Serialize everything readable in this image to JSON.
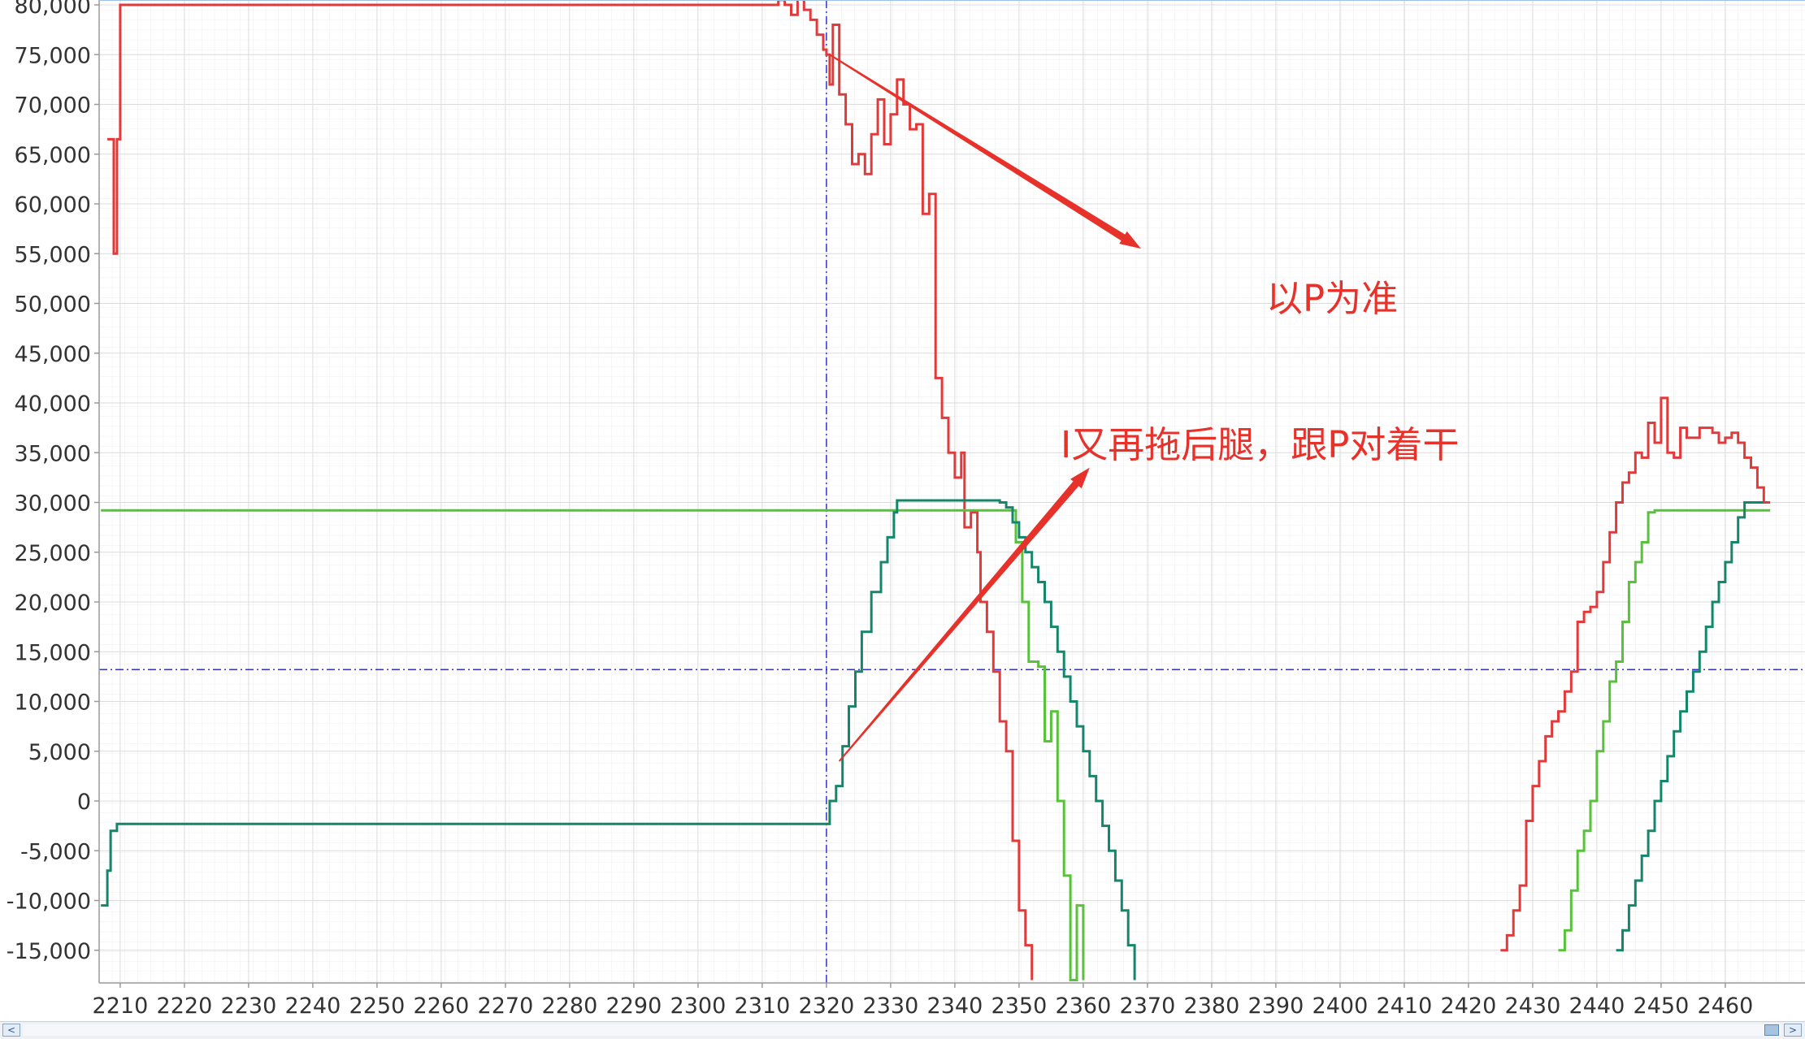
{
  "chart_data": {
    "type": "line",
    "title": "",
    "xlabel": "",
    "ylabel": "",
    "xlim": [
      2207,
      2466
    ],
    "ylim": [
      -18000,
      81500
    ],
    "x_ticks": [
      2210,
      2220,
      2230,
      2240,
      2250,
      2260,
      2270,
      2280,
      2290,
      2300,
      2310,
      2320,
      2330,
      2340,
      2350,
      2360,
      2370,
      2380,
      2390,
      2400,
      2410,
      2420,
      2430,
      2440,
      2450,
      2460
    ],
    "x_tick_labels": [
      "2210",
      "2220",
      "2230",
      "2240",
      "2250",
      "2260",
      "2270",
      "2280",
      "2290",
      "2300",
      "2310",
      "2320",
      "2330",
      "2340",
      "2350",
      "2360",
      "2370",
      "2380",
      "2390",
      "2400",
      "2410",
      "2420",
      "2430",
      "2440",
      "2450",
      "2460"
    ],
    "y_ticks": [
      80000,
      75000,
      70000,
      65000,
      60000,
      55000,
      50000,
      45000,
      40000,
      35000,
      30000,
      25000,
      20000,
      15000,
      10000,
      5000,
      0,
      -5000,
      -10000,
      -15000
    ],
    "y_tick_labels": [
      "80,000",
      "75,000",
      "70,000",
      "65,000",
      "60,000",
      "55,000",
      "50,000",
      "45,000",
      "40,000",
      "35,000",
      "30,000",
      "25,000",
      "20,000",
      "15,000",
      "10,000",
      "5,000",
      "0",
      "-5,000",
      "-10,000",
      "-15,000"
    ],
    "grid": true,
    "crosshair": {
      "x": 2320,
      "y": 13200,
      "color": "#3333cc"
    },
    "series": [
      {
        "color": "#e23a3a",
        "step": true,
        "points": [
          [
            2208,
            66500
          ],
          [
            2209,
            55000
          ],
          [
            2209.5,
            66500
          ],
          [
            2210,
            80000
          ],
          [
            2310.5,
            80000
          ],
          [
            2312.5,
            80500
          ],
          [
            2313.5,
            80000
          ],
          [
            2314.5,
            79000
          ],
          [
            2315.5,
            81500
          ],
          [
            2316.5,
            79500
          ],
          [
            2317.5,
            78500
          ],
          [
            2318.5,
            77000
          ],
          [
            2319.5,
            75500
          ],
          [
            2320,
            75000
          ],
          [
            2320.5,
            72000
          ],
          [
            2321,
            78000
          ],
          [
            2322,
            71000
          ],
          [
            2323,
            68000
          ],
          [
            2324,
            64000
          ],
          [
            2325,
            65000
          ],
          [
            2326,
            63000
          ],
          [
            2327,
            67000
          ],
          [
            2328,
            70500
          ],
          [
            2329,
            66000
          ],
          [
            2330,
            69000
          ],
          [
            2331,
            72500
          ],
          [
            2332,
            70000
          ],
          [
            2333,
            67500
          ],
          [
            2334,
            68000
          ],
          [
            2335,
            59000
          ],
          [
            2336,
            61000
          ],
          [
            2337,
            42500
          ],
          [
            2338,
            38500
          ],
          [
            2339,
            35000
          ],
          [
            2340,
            32500
          ],
          [
            2341,
            35000
          ],
          [
            2341.5,
            27500
          ],
          [
            2342.5,
            29000
          ],
          [
            2343.5,
            25000
          ],
          [
            2344,
            20000
          ],
          [
            2345,
            17000
          ],
          [
            2346,
            13000
          ],
          [
            2347,
            8000
          ],
          [
            2348,
            5000
          ],
          [
            2349,
            -4000
          ],
          [
            2350,
            -11000
          ],
          [
            2351,
            -14500
          ],
          [
            2352,
            -18000
          ]
        ]
      },
      {
        "color": "#e23a3a",
        "step": true,
        "points": [
          [
            2425,
            -15000
          ],
          [
            2426,
            -13500
          ],
          [
            2427,
            -11000
          ],
          [
            2428,
            -8500
          ],
          [
            2429,
            -2000
          ],
          [
            2430,
            1500
          ],
          [
            2431,
            4000
          ],
          [
            2432,
            6500
          ],
          [
            2433,
            8000
          ],
          [
            2434,
            9000
          ],
          [
            2435,
            11000
          ],
          [
            2436,
            13000
          ],
          [
            2437,
            18000
          ],
          [
            2438,
            19000
          ],
          [
            2439,
            19500
          ],
          [
            2440,
            21000
          ],
          [
            2441,
            24000
          ],
          [
            2442,
            27000
          ],
          [
            2443,
            30000
          ],
          [
            2444,
            32000
          ],
          [
            2445,
            33000
          ],
          [
            2446,
            35000
          ],
          [
            2447,
            34500
          ],
          [
            2448,
            38000
          ],
          [
            2449,
            36000
          ],
          [
            2450,
            40500
          ],
          [
            2451,
            35000
          ],
          [
            2452,
            34500
          ],
          [
            2453,
            37500
          ],
          [
            2454,
            36500
          ],
          [
            2455,
            36500
          ],
          [
            2456,
            37500
          ],
          [
            2457,
            37500
          ],
          [
            2458,
            37000
          ],
          [
            2459,
            36000
          ],
          [
            2460,
            36500
          ],
          [
            2461,
            37000
          ],
          [
            2462,
            36000
          ],
          [
            2463,
            34500
          ],
          [
            2464,
            33500
          ],
          [
            2465,
            31500
          ],
          [
            2466,
            30000
          ],
          [
            2467,
            30000
          ]
        ]
      },
      {
        "color": "#57c23a",
        "step": true,
        "points": [
          [
            2207,
            29200
          ],
          [
            2348.5,
            29200
          ],
          [
            2349.5,
            26000
          ],
          [
            2350.5,
            20000
          ],
          [
            2351.5,
            14000
          ],
          [
            2353,
            13500
          ],
          [
            2354,
            6000
          ],
          [
            2355,
            9000
          ],
          [
            2356,
            0
          ],
          [
            2357,
            -7500
          ],
          [
            2358,
            -18000
          ],
          [
            2359,
            -10500
          ],
          [
            2360,
            -18000
          ]
        ]
      },
      {
        "color": "#57c23a",
        "step": true,
        "points": [
          [
            2434,
            -15000
          ],
          [
            2435,
            -13000
          ],
          [
            2436,
            -9000
          ],
          [
            2437,
            -5000
          ],
          [
            2438,
            -3000
          ],
          [
            2439,
            0
          ],
          [
            2440,
            5000
          ],
          [
            2441,
            8000
          ],
          [
            2442,
            12000
          ],
          [
            2443,
            14000
          ],
          [
            2444,
            18000
          ],
          [
            2445,
            22000
          ],
          [
            2446,
            24000
          ],
          [
            2447,
            26000
          ],
          [
            2448,
            29000
          ],
          [
            2449,
            29200
          ],
          [
            2467,
            29200
          ]
        ]
      },
      {
        "color": "#14866b",
        "step": true,
        "points": [
          [
            2207,
            -10500
          ],
          [
            2208,
            -7000
          ],
          [
            2208.5,
            -3000
          ],
          [
            2209.5,
            -2300
          ],
          [
            2320,
            -2300
          ],
          [
            2320.5,
            0
          ],
          [
            2321.5,
            1500
          ],
          [
            2322.5,
            5500
          ],
          [
            2323.5,
            9500
          ],
          [
            2324.5,
            13000
          ],
          [
            2325.5,
            17000
          ],
          [
            2327,
            21000
          ],
          [
            2328.5,
            24000
          ],
          [
            2329.5,
            26500
          ],
          [
            2330.5,
            29000
          ],
          [
            2331,
            30200
          ],
          [
            2346,
            30200
          ],
          [
            2347,
            30000
          ],
          [
            2348,
            29500
          ],
          [
            2349,
            28000
          ],
          [
            2350,
            26500
          ],
          [
            2351,
            25000
          ],
          [
            2352,
            23500
          ],
          [
            2353,
            22000
          ],
          [
            2354,
            20000
          ],
          [
            2355,
            17500
          ],
          [
            2356,
            15000
          ],
          [
            2357,
            12500
          ],
          [
            2358,
            10000
          ],
          [
            2359,
            7500
          ],
          [
            2360,
            5000
          ],
          [
            2361,
            2500
          ],
          [
            2362,
            0
          ],
          [
            2363,
            -2500
          ],
          [
            2364,
            -5000
          ],
          [
            2365,
            -8000
          ],
          [
            2366,
            -11000
          ],
          [
            2367,
            -14500
          ],
          [
            2368,
            -18000
          ]
        ]
      },
      {
        "color": "#14866b",
        "step": true,
        "points": [
          [
            2443,
            -15000
          ],
          [
            2444,
            -13000
          ],
          [
            2445,
            -10500
          ],
          [
            2446,
            -8000
          ],
          [
            2447,
            -5500
          ],
          [
            2448,
            -3000
          ],
          [
            2449,
            0
          ],
          [
            2450,
            2000
          ],
          [
            2451,
            4500
          ],
          [
            2452,
            7000
          ],
          [
            2453,
            9000
          ],
          [
            2454,
            11000
          ],
          [
            2455,
            13000
          ],
          [
            2456,
            15000
          ],
          [
            2457,
            17500
          ],
          [
            2458,
            20000
          ],
          [
            2459,
            22000
          ],
          [
            2460,
            24000
          ],
          [
            2461,
            26000
          ],
          [
            2462,
            28500
          ],
          [
            2463,
            30000
          ],
          [
            2466,
            30000
          ]
        ]
      }
    ],
    "annotations": [
      {
        "text": "以P为准",
        "color": "#e6322b",
        "arrow_from": [
          2320.5,
          75000
        ],
        "arrow_to": [
          2369,
          55500
        ]
      },
      {
        "text": "I又再拖后腿，跟P对着干",
        "color": "#e6322b",
        "arrow_from": [
          2322,
          4000
        ],
        "arrow_to": [
          2361,
          33500
        ]
      }
    ]
  },
  "scrollbar": {
    "left_arrow": "<",
    "right_arrow": ">"
  }
}
